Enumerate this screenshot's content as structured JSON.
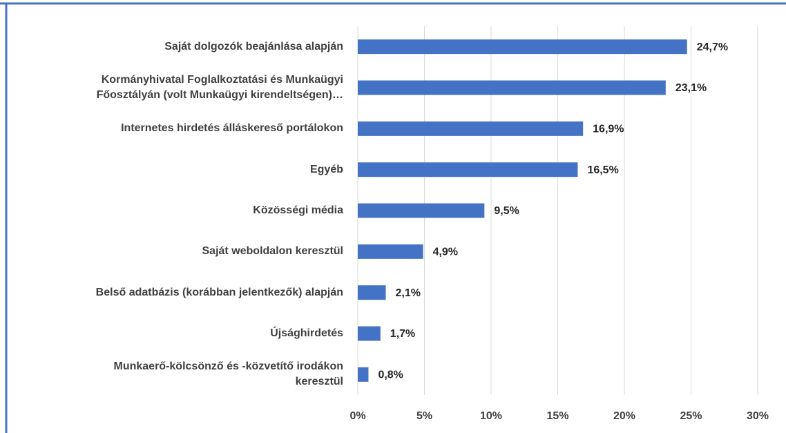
{
  "chart_data": {
    "type": "bar",
    "orientation": "horizontal",
    "categories": [
      "Saját dolgozók beajánlása alapján",
      "Kormányhivatal Foglalkoztatási és Munkaügyi\nFőosztályán (volt Munkaügyi kirendeltségen)…",
      "Internetes hirdetés álláskereső portálokon",
      "Egyéb",
      "Közösségi média",
      "Saját weboldalon keresztül",
      "Belső adatbázis (korábban jelentkezők) alapján",
      "Újsághirdetés",
      "Munkaerő-kölcsönző és -közvetítő irodákon\nkeresztül"
    ],
    "values": [
      24.7,
      23.1,
      16.9,
      16.5,
      9.5,
      4.9,
      2.1,
      1.7,
      0.8
    ],
    "value_labels": [
      "24,7%",
      "23,1%",
      "16,9%",
      "16,5%",
      "9,5%",
      "4,9%",
      "2,1%",
      "1,7%",
      "0,8%"
    ],
    "color": "#4472c4",
    "xlim": [
      0,
      30
    ],
    "xticks": [
      {
        "value": 0,
        "label": "0%"
      },
      {
        "value": 5,
        "label": "5%"
      },
      {
        "value": 10,
        "label": "10%"
      },
      {
        "value": 15,
        "label": "15%"
      },
      {
        "value": 20,
        "label": "20%"
      },
      {
        "value": 25,
        "label": "25%"
      },
      {
        "value": 30,
        "label": "30%"
      }
    ],
    "grid": true
  }
}
